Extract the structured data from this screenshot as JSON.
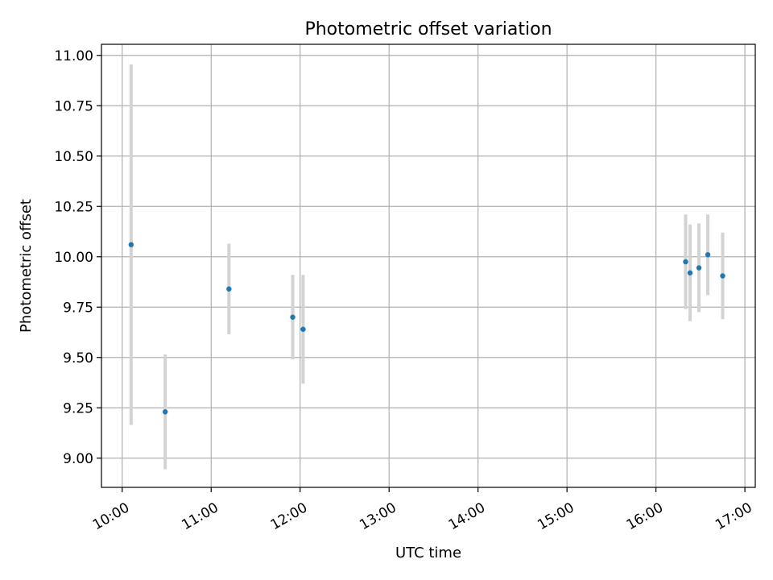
{
  "chart_data": {
    "type": "scatter",
    "title": "Photometric offset variation",
    "xlabel": "UTC time",
    "ylabel": "Photometric offset",
    "grid": true,
    "x_ticks": [
      "10:00",
      "11:00",
      "12:00",
      "13:00",
      "14:00",
      "15:00",
      "16:00",
      "17:00"
    ],
    "y_ticks": [
      "9.00",
      "9.25",
      "9.50",
      "9.75",
      "10.00",
      "10.25",
      "10.50",
      "10.75",
      "11.00"
    ],
    "xlim": [
      "09:46",
      "17:07"
    ],
    "ylim": [
      8.855,
      11.055
    ],
    "colors": {
      "point": "#1f77b4",
      "errorbar": "#d3d3d3",
      "grid": "#b0b0b0"
    },
    "points": [
      {
        "x": "10:06",
        "y": 10.06,
        "yerr": 0.895
      },
      {
        "x": "10:29",
        "y": 9.23,
        "yerr": 0.285
      },
      {
        "x": "11:12",
        "y": 9.84,
        "yerr": 0.225
      },
      {
        "x": "11:55",
        "y": 9.7,
        "yerr": 0.21
      },
      {
        "x": "12:02",
        "y": 9.64,
        "yerr": 0.27
      },
      {
        "x": "16:20",
        "y": 9.975,
        "yerr": 0.235
      },
      {
        "x": "16:23",
        "y": 9.92,
        "yerr": 0.24
      },
      {
        "x": "16:29",
        "y": 9.945,
        "yerr": 0.22
      },
      {
        "x": "16:35",
        "y": 10.01,
        "yerr": 0.2
      },
      {
        "x": "16:45",
        "y": 9.905,
        "yerr": 0.215
      }
    ]
  }
}
